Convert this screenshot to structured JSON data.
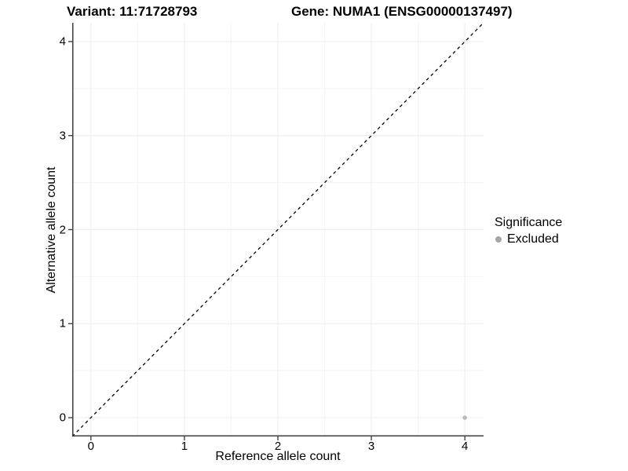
{
  "chart_data": {
    "type": "scatter",
    "title_left": "Variant: 11:71728793",
    "title_right": "Gene: NUMA1 (ENSG00000137497)",
    "xlabel": "Reference allele count",
    "ylabel": "Alternative allele count",
    "xlim": [
      -0.2,
      4.2
    ],
    "ylim": [
      -0.2,
      4.2
    ],
    "xticks": [
      0,
      1,
      2,
      3,
      4
    ],
    "yticks": [
      0,
      1,
      2,
      3,
      4
    ],
    "grid": {
      "major": true,
      "minor": true,
      "major_color": "#ececec",
      "minor_color": "#f5f5f5"
    },
    "axis_color": "#3f3f3f",
    "tick_color": "#333333",
    "reference_line": {
      "type": "identity",
      "style": "dashed",
      "color": "#000000",
      "from": [
        -0.2,
        -0.2
      ],
      "to": [
        4.2,
        4.2
      ]
    },
    "series": [
      {
        "name": "Excluded",
        "color": "#b9b9b9",
        "points": [
          {
            "x": 4,
            "y": 0
          }
        ]
      }
    ],
    "legend": {
      "title": "Significance",
      "position": "right",
      "items": [
        {
          "label": "Excluded",
          "color": "#a6a6a6"
        }
      ]
    }
  }
}
